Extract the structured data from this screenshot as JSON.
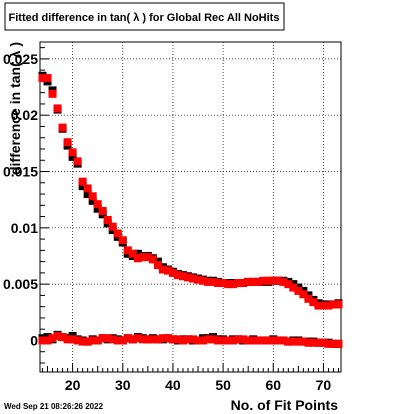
{
  "title": "Fitted difference in tan( λ ) for Global Rec All NoHits",
  "footer": "Wed Sep 21 08:26:26 2022",
  "colors": {
    "series_black": "#000000",
    "series_red": "#ff0000",
    "grid": "#000000"
  },
  "chart_data": {
    "type": "scatter",
    "title": "Fitted difference in tan( λ ) for Global Rec All NoHits",
    "xlabel": "No. of Fit Points",
    "ylabel": "difference in tan( λ )",
    "xlim": [
      13.5,
      73.5
    ],
    "ylim": [
      -0.0028,
      0.0265
    ],
    "xticks": [
      20,
      30,
      40,
      50,
      60,
      70
    ],
    "xtick_labels": [
      "20",
      "30",
      "40",
      "50",
      "60",
      "70"
    ],
    "yticks": [
      0,
      0.005,
      0.01,
      0.015,
      0.02,
      0.025
    ],
    "ytick_labels": [
      "0",
      "0.005",
      "0.01",
      "0.015",
      "0.02",
      "0.025"
    ],
    "grid": true,
    "series": [
      {
        "color": "#000000",
        "x": [
          14,
          15,
          16,
          17,
          18,
          19,
          20,
          21,
          22,
          23,
          24,
          25,
          26,
          27,
          28,
          29,
          30,
          31,
          32,
          33,
          34,
          35,
          36,
          37,
          38,
          39,
          40,
          41,
          42,
          43,
          44,
          45,
          46,
          47,
          48,
          49,
          50,
          51,
          52,
          53,
          54,
          55,
          56,
          57,
          58,
          59,
          60,
          61,
          62,
          63,
          64,
          65,
          66,
          67,
          68,
          69,
          70,
          71,
          72,
          73
        ],
        "y": [
          0.0235,
          0.023,
          0.0222,
          0.0205,
          0.0188,
          0.0173,
          0.0163,
          0.0157,
          0.0137,
          0.013,
          0.0124,
          0.0117,
          0.0112,
          0.0104,
          0.0098,
          0.0092,
          0.0087,
          0.0077,
          0.0075,
          0.0077,
          0.0075,
          0.0075,
          0.0073,
          0.007,
          0.0065,
          0.0063,
          0.0061,
          0.0059,
          0.0058,
          0.0057,
          0.0056,
          0.0055,
          0.0054,
          0.0053,
          0.0053,
          0.0052,
          0.0051,
          0.0051,
          0.0051,
          0.0051,
          0.0051,
          0.0052,
          0.0052,
          0.0052,
          0.0052,
          0.0052,
          0.0053,
          0.0053,
          0.0053,
          0.0052,
          0.005,
          0.0047,
          0.0044,
          0.004,
          0.0036,
          0.0033,
          0.0032,
          0.0032,
          0.0032,
          0.0033
        ]
      },
      {
        "color": "#000000",
        "x": [
          14,
          15,
          16,
          17,
          18,
          19,
          20,
          21,
          22,
          23,
          24,
          25,
          26,
          27,
          28,
          29,
          30,
          31,
          32,
          33,
          34,
          35,
          36,
          37,
          38,
          39,
          40,
          41,
          42,
          43,
          44,
          45,
          46,
          47,
          48,
          49,
          50,
          51,
          52,
          53,
          54,
          55,
          56,
          57,
          58,
          59,
          60,
          61,
          62,
          63,
          64,
          65,
          66,
          67,
          68,
          69,
          70,
          71,
          72,
          73
        ],
        "y": [
          0.0002,
          0.0003,
          0.0001,
          0.0005,
          0.0003,
          0.0002,
          0.0004,
          0.0001,
          0.0,
          -0.0001,
          0.0001,
          0.0,
          0.0002,
          0.0001,
          0.0002,
          0.0001,
          0.0,
          0.0002,
          0.0001,
          0.0003,
          0.0002,
          0.0001,
          0.0002,
          0.0001,
          0.0001,
          0.0002,
          0.0001,
          0.0,
          0.0001,
          0.0001,
          0.0,
          0.0,
          0.0002,
          0.0002,
          0.0003,
          0.0001,
          0.0001,
          0.0,
          0.0001,
          0.0001,
          0.0,
          0.0,
          0.0001,
          0.0,
          0.0,
          0.0,
          0.0001,
          0.0,
          0.0,
          -0.0001,
          0.0,
          0.0,
          -0.0001,
          -0.0001,
          -0.0001,
          -0.0002,
          -0.0002,
          -0.0002,
          -0.0003,
          -0.0003
        ]
      },
      {
        "color": "#ff0000",
        "x": [
          14,
          15,
          16,
          17,
          18,
          19,
          20,
          21,
          22,
          23,
          24,
          25,
          26,
          27,
          28,
          29,
          30,
          31,
          32,
          33,
          34,
          35,
          36,
          37,
          38,
          39,
          40,
          41,
          42,
          43,
          44,
          45,
          46,
          47,
          48,
          49,
          50,
          51,
          52,
          53,
          54,
          55,
          56,
          57,
          58,
          59,
          60,
          61,
          62,
          63,
          64,
          65,
          66,
          67,
          68,
          69,
          70,
          71,
          72,
          73
        ],
        "y": [
          0.0233,
          0.0233,
          0.0219,
          0.0206,
          0.0189,
          0.0176,
          0.0167,
          0.0159,
          0.0141,
          0.0135,
          0.0128,
          0.0121,
          0.0115,
          0.0107,
          0.0101,
          0.0095,
          0.0089,
          0.008,
          0.0077,
          0.0073,
          0.0074,
          0.0074,
          0.0072,
          0.0067,
          0.0063,
          0.0062,
          0.006,
          0.0058,
          0.0057,
          0.0056,
          0.0055,
          0.0054,
          0.0053,
          0.0052,
          0.0052,
          0.0051,
          0.0051,
          0.005,
          0.005,
          0.0051,
          0.0051,
          0.0052,
          0.0052,
          0.0052,
          0.0053,
          0.0053,
          0.0053,
          0.0053,
          0.0052,
          0.005,
          0.0047,
          0.0044,
          0.0041,
          0.0037,
          0.0034,
          0.0031,
          0.0031,
          0.0031,
          0.0032,
          0.0032
        ]
      },
      {
        "color": "#ff0000",
        "x": [
          14,
          15,
          16,
          17,
          18,
          19,
          20,
          21,
          22,
          23,
          24,
          25,
          26,
          27,
          28,
          29,
          30,
          31,
          32,
          33,
          34,
          35,
          36,
          37,
          38,
          39,
          40,
          41,
          42,
          43,
          44,
          45,
          46,
          47,
          48,
          49,
          50,
          51,
          52,
          53,
          54,
          55,
          56,
          57,
          58,
          59,
          60,
          61,
          62,
          63,
          64,
          65,
          66,
          67,
          68,
          69,
          70,
          71,
          72,
          73
        ],
        "y": [
          0.0,
          0.0,
          0.0002,
          0.0004,
          0.0003,
          0.0001,
          0.0001,
          0.0,
          -0.0001,
          -0.0001,
          0.0,
          0.0,
          0.0002,
          0.0002,
          0.0001,
          0.0,
          0.0,
          0.0002,
          0.0001,
          0.0002,
          0.0001,
          0.0001,
          0.0001,
          0.0001,
          0.0002,
          0.0002,
          0.0001,
          0.0001,
          0.0,
          0.0001,
          0.0001,
          0.0,
          0.0,
          0.0001,
          0.0001,
          0.0,
          0.0,
          0.0,
          0.0,
          0.0001,
          0.0001,
          0.0,
          0.0,
          0.0,
          0.0,
          0.0,
          0.0,
          0.0,
          0.0,
          -0.0001,
          -0.0001,
          -0.0001,
          -0.0001,
          -0.0002,
          -0.0002,
          -0.0002,
          -0.0002,
          -0.0003,
          -0.0003,
          -0.0003
        ]
      }
    ]
  }
}
